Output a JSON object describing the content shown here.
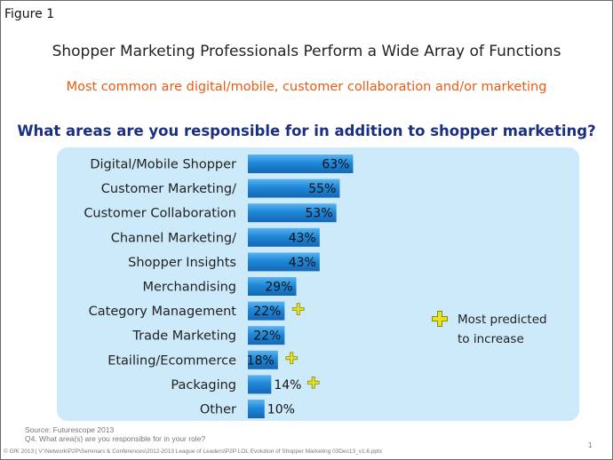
{
  "figure_label": "Figure 1",
  "title": "Shopper Marketing Professionals Perform a Wide Array of Functions",
  "subtitle": "Most common are digital/mobile, customer collaboration and/or marketing",
  "colors": {
    "subtitle": "#e85b11",
    "question": "#1b2f82",
    "bar": "#1e88d8",
    "panel": "#cdeafa",
    "plus_icon": "#e8e41c"
  },
  "chart_data": {
    "type": "bar",
    "orientation": "horizontal",
    "title": "What areas are you responsible for in addition to shopper marketing?",
    "categories": [
      "Digital/Mobile Shopper",
      "Customer Marketing/",
      "Customer Collaboration",
      "Channel Marketing/",
      "Shopper Insights",
      "Merchandising",
      "Category Management",
      "Trade Marketing",
      "Etailing/Ecommerce",
      "Packaging",
      "Other"
    ],
    "values": [
      63,
      55,
      53,
      43,
      43,
      29,
      22,
      22,
      18,
      14,
      10
    ],
    "labels": [
      "63%",
      "55%",
      "53%",
      "43%",
      "43%",
      "29%",
      "22%",
      "22%",
      "18%",
      "14%",
      "10%"
    ],
    "most_predicted_to_increase": [
      false,
      false,
      false,
      false,
      false,
      false,
      true,
      false,
      true,
      true,
      false
    ],
    "unit": "%"
  },
  "legend": {
    "icon": "plus-icon",
    "text": "Most predicted to increase"
  },
  "source": "Source: Futurescope 2013",
  "question_note": "Q4. What area(s) are you responsible for in your role?",
  "footer": "© GfK 2013 | V:\\Network\\P2P\\Seminars & Conferences\\2012-2013 League of Leaders\\P2P LOL Evolution of Shopper Marketing 03Dec13_v1.6.pptx",
  "page_number": "1"
}
